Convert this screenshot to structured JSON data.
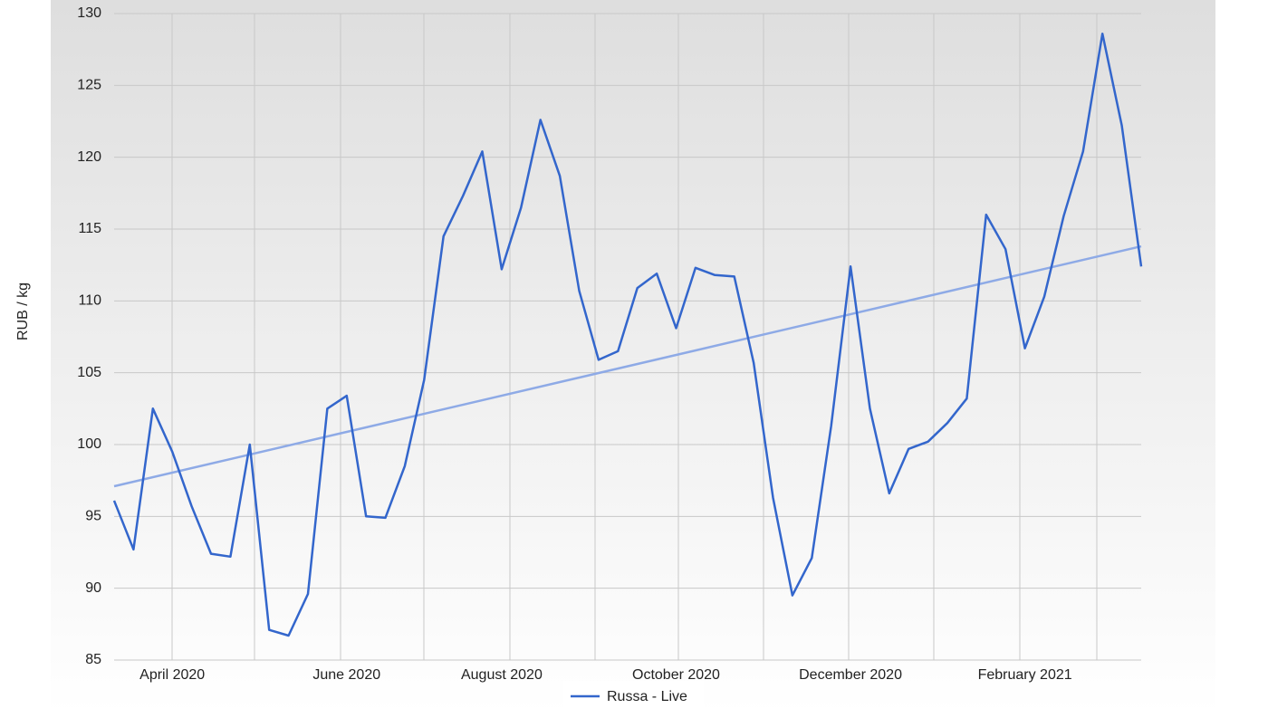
{
  "chart_data": {
    "type": "line",
    "y_label": "RUB / kg",
    "categories": [
      null,
      null,
      null,
      "April 2020",
      null,
      null,
      null,
      null,
      null,
      null,
      null,
      null,
      "June 2020",
      null,
      null,
      null,
      null,
      null,
      null,
      null,
      "August 2020",
      null,
      null,
      null,
      null,
      null,
      null,
      null,
      null,
      "October 2020",
      null,
      null,
      null,
      null,
      null,
      null,
      null,
      null,
      "December 2020",
      null,
      null,
      null,
      null,
      null,
      null,
      null,
      null,
      "February 2021",
      null,
      null,
      null,
      null,
      null,
      null
    ],
    "series": [
      {
        "name": "Russa - Live",
        "color": "#3366cc",
        "values": [
          96.1,
          92.7,
          102.5,
          99.5,
          95.7,
          92.4,
          92.2,
          100.0,
          87.1,
          86.7,
          89.6,
          102.5,
          103.4,
          95.0,
          94.9,
          98.5,
          104.5,
          114.5,
          117.3,
          120.4,
          112.2,
          116.5,
          122.6,
          118.7,
          110.7,
          105.9,
          106.5,
          110.9,
          111.9,
          108.1,
          112.3,
          111.8,
          111.7,
          105.7,
          96.3,
          89.5,
          92.1,
          101.3,
          112.4,
          102.5,
          96.6,
          99.7,
          100.2,
          101.5,
          103.2,
          116.0,
          113.6,
          106.7,
          110.3,
          115.9,
          120.4,
          128.6,
          122.2,
          112.4
        ]
      }
    ],
    "trendline": {
      "color": "#8eaae6",
      "start": 97.1,
      "end": 113.8
    },
    "ylim": [
      85,
      130
    ],
    "yticks": [
      85,
      90,
      95,
      100,
      105,
      110,
      115,
      120,
      125,
      130
    ],
    "grid": true,
    "legend": "bottom"
  }
}
